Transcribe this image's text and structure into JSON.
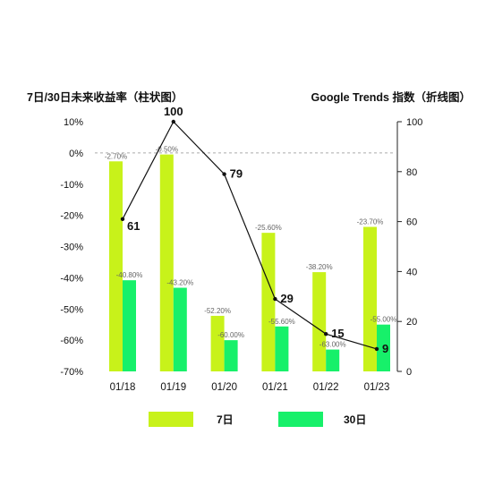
{
  "chart_data": {
    "type": "bar+line",
    "categories": [
      "01/18",
      "01/19",
      "01/20",
      "01/21",
      "01/22",
      "01/23"
    ],
    "left_axis": {
      "title": "7日/30日未来收益率（柱状图）",
      "ticks": [
        "10%",
        "0%",
        "-10%",
        "-20%",
        "-30%",
        "-40%",
        "-50%",
        "-60%",
        "-70%"
      ],
      "ylim": [
        -70,
        10
      ]
    },
    "right_axis": {
      "title": "Google Trends 指数（折线图）",
      "ticks": [
        "100",
        "80",
        "60",
        "40",
        "20",
        "0"
      ],
      "ylim": [
        0,
        100
      ]
    },
    "bar_series": [
      {
        "name": "7日",
        "color": "#c8f21a",
        "values": [
          -2.7,
          -0.5,
          -52.2,
          -25.6,
          -38.2,
          -23.7
        ],
        "labels": [
          "-2.70%",
          "-0.50%",
          "-52.20%",
          "-25.60%",
          "-38.20%",
          "-23.70%"
        ]
      },
      {
        "name": "30日",
        "color": "#17f06a",
        "values": [
          -40.8,
          -43.2,
          -60.0,
          -55.6,
          -63.0,
          -55.0
        ],
        "labels": [
          "-40.80%",
          "-43.20%",
          "-60.00%",
          "-55.60%",
          "-63.00%",
          "-55.00%"
        ]
      }
    ],
    "line_series": {
      "values": [
        61,
        100,
        79,
        29,
        15,
        9
      ],
      "labels": [
        "61",
        "100",
        "79",
        "29",
        "15",
        "9"
      ],
      "color": "#111111"
    },
    "zero_line": "dashed",
    "grid": false,
    "legend_position": "bottom"
  }
}
